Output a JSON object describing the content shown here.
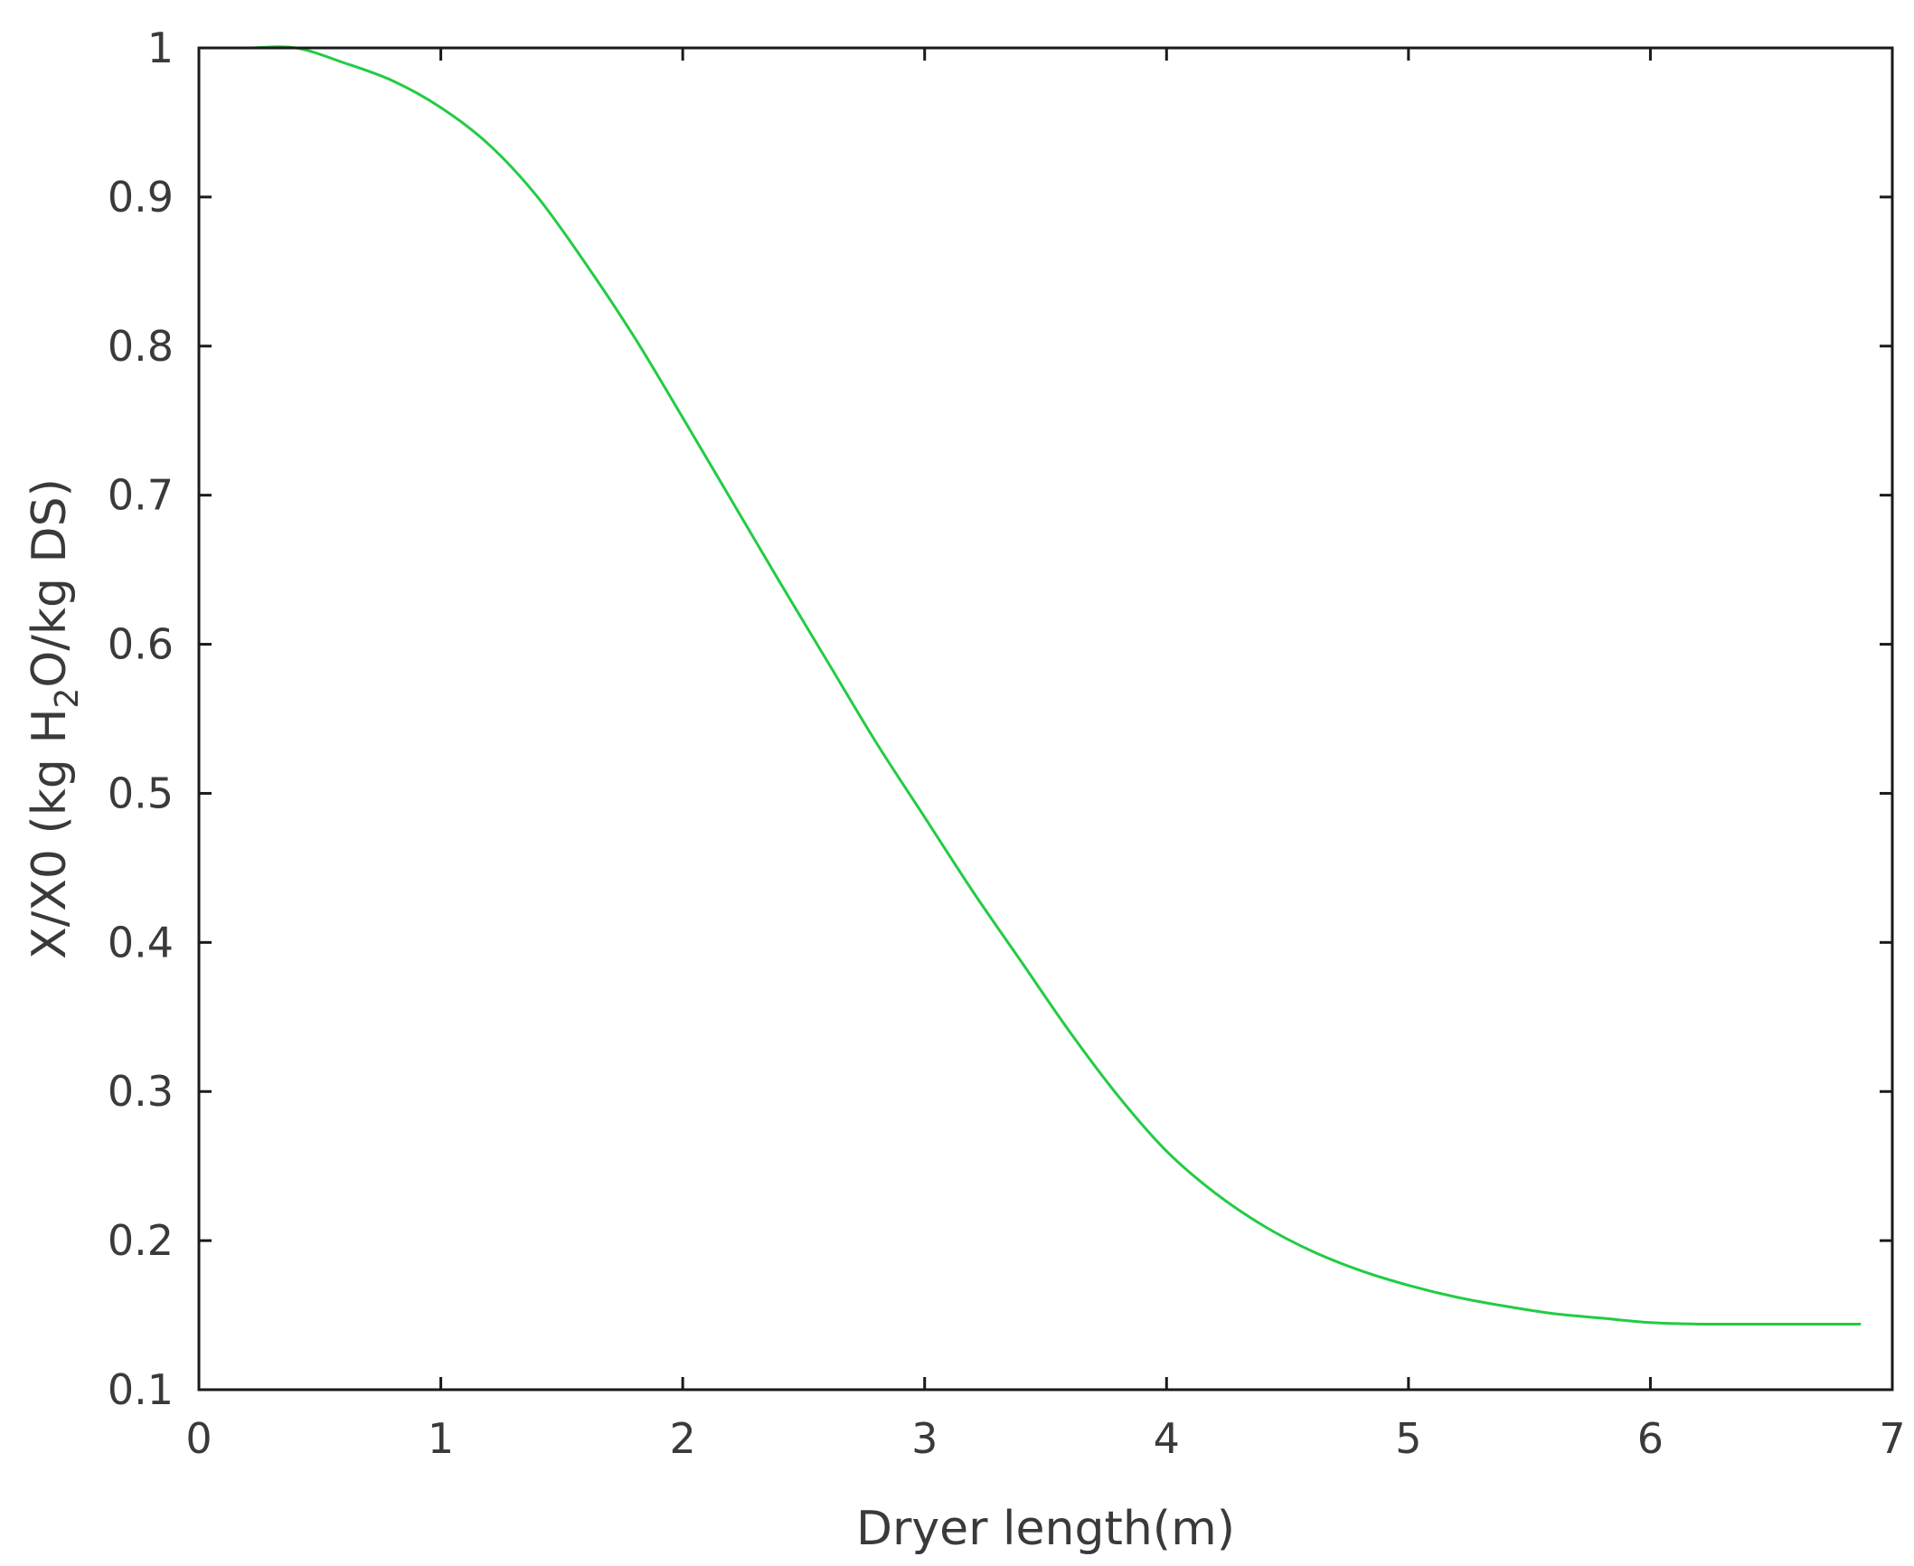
{
  "chart_data": {
    "type": "line",
    "title": "",
    "xlabel": "Dryer length(m)",
    "ylabel": {
      "prefix": "X/X0 (kg H",
      "subscript": "2",
      "suffix": "O/kg DS)"
    },
    "xlim": [
      0,
      7
    ],
    "ylim": [
      0.1,
      1
    ],
    "xticks": [
      0,
      1,
      2,
      3,
      4,
      5,
      6,
      7
    ],
    "yticks": [
      0.1,
      0.2,
      0.3,
      0.4,
      0.5,
      0.6,
      0.7,
      0.8,
      0.9,
      1
    ],
    "xtick_labels": [
      "0",
      "1",
      "2",
      "3",
      "4",
      "5",
      "6",
      "7"
    ],
    "ytick_labels": [
      "0.1",
      "0.2",
      "0.3",
      "0.4",
      "0.5",
      "0.6",
      "0.7",
      "0.8",
      "0.9",
      "1"
    ],
    "grid": false,
    "legend": "none",
    "series": [
      {
        "color": "#22cc44",
        "x": [
          0,
          0.2,
          0.4,
          0.6,
          0.8,
          1.0,
          1.2,
          1.4,
          1.6,
          1.8,
          2.0,
          2.2,
          2.4,
          2.6,
          2.8,
          3.0,
          3.2,
          3.4,
          3.6,
          3.8,
          4.0,
          4.2,
          4.4,
          4.6,
          4.8,
          5.0,
          5.2,
          5.4,
          5.6,
          5.8,
          6.0,
          6.2,
          6.4,
          6.6,
          6.87
        ],
        "y": [
          1.0,
          1.0,
          1.0,
          0.99,
          0.978,
          0.96,
          0.935,
          0.9,
          0.855,
          0.806,
          0.752,
          0.697,
          0.642,
          0.588,
          0.534,
          0.484,
          0.434,
          0.387,
          0.34,
          0.297,
          0.26,
          0.232,
          0.21,
          0.193,
          0.18,
          0.17,
          0.162,
          0.156,
          0.151,
          0.148,
          0.145,
          0.144,
          0.144,
          0.144,
          0.144
        ]
      }
    ]
  }
}
